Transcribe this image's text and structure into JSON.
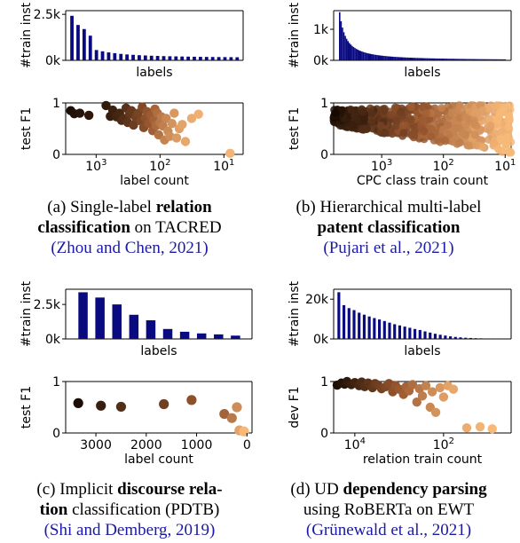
{
  "colors": {
    "bar": "#0a0a80",
    "dark": "#1c0e04",
    "light": "#f7b878",
    "axis": "#000000",
    "cite": "#1a1aa6"
  },
  "panels": [
    {
      "id": "a",
      "caption": {
        "pre": "(a) Single-label ",
        "bold1": "relation",
        "mid": " ",
        "bold2": "classification",
        "post": " on TACRED",
        "cite": "(Zhou and Chen, 2021)"
      },
      "chart_data": [
        {
          "type": "bar",
          "xlabel": "labels",
          "ylabel": "#train inst",
          "yticks": [
            "0k",
            "2.5k"
          ],
          "ylim": [
            0,
            2700
          ],
          "values": [
            2420,
            1920,
            1700,
            1340,
            560,
            490,
            430,
            390,
            350,
            320,
            300,
            280,
            265,
            250,
            240,
            230,
            222,
            215,
            208,
            202,
            196,
            190,
            186,
            182,
            178,
            175,
            172,
            168
          ]
        },
        {
          "type": "scatter",
          "xlabel": "label count",
          "ylabel": "test F1",
          "xscale": "log",
          "xreversed": true,
          "xlim": [
            3000,
            5
          ],
          "ylim": [
            0,
            1
          ],
          "yticks": [
            "0",
            "1"
          ],
          "xticks": [
            "10^3",
            "10^2",
            "10^1"
          ],
          "points": [
            [
              2500,
              0.85
            ],
            [
              2200,
              0.79
            ],
            [
              1800,
              0.8
            ],
            [
              1300,
              0.76
            ],
            [
              700,
              0.95
            ],
            [
              600,
              0.74
            ],
            [
              550,
              0.86
            ],
            [
              480,
              0.73
            ],
            [
              430,
              0.8
            ],
            [
              400,
              0.66
            ],
            [
              370,
              0.7
            ],
            [
              340,
              0.9
            ],
            [
              320,
              0.62
            ],
            [
              300,
              0.78
            ],
            [
              280,
              0.85
            ],
            [
              260,
              0.57
            ],
            [
              240,
              0.72
            ],
            [
              220,
              0.8
            ],
            [
              200,
              0.65
            ],
            [
              190,
              0.92
            ],
            [
              180,
              0.52
            ],
            [
              170,
              0.7
            ],
            [
              160,
              0.83
            ],
            [
              150,
              0.6
            ],
            [
              140,
              0.76
            ],
            [
              130,
              0.46
            ],
            [
              125,
              0.66
            ],
            [
              120,
              0.88
            ],
            [
              115,
              0.56
            ],
            [
              110,
              0.8
            ],
            [
              105,
              0.38
            ],
            [
              100,
              0.62
            ],
            [
              95,
              0.73
            ],
            [
              90,
              0.55
            ],
            [
              85,
              0.28
            ],
            [
              80,
              0.7
            ],
            [
              75,
              0.45
            ],
            [
              70,
              0.35
            ],
            [
              65,
              0.6
            ],
            [
              60,
              0.8
            ],
            [
              55,
              0.32
            ],
            [
              50,
              0.5
            ],
            [
              45,
              0.58
            ],
            [
              40,
              0.25
            ],
            [
              32,
              0.7
            ],
            [
              25,
              0.78
            ],
            [
              8,
              0.02
            ]
          ]
        }
      ]
    },
    {
      "id": "b",
      "caption": {
        "pre": "(b) Hierarchical multi-label ",
        "bold1": "patent classification",
        "cite": "(Pujari et al., 2021)"
      },
      "chart_data": [
        {
          "type": "bar",
          "xlabel": "labels",
          "ylabel": "#train inst",
          "yticks": [
            "0k",
            "1k"
          ],
          "ylim": [
            0,
            1600
          ],
          "shape": "long-tail",
          "values": [
            1550,
            1100,
            800,
            600,
            460,
            360,
            290,
            235,
            195,
            165,
            140,
            120,
            104,
            91,
            80,
            71,
            64,
            58,
            52,
            47,
            43,
            39,
            36,
            33,
            30,
            28,
            26,
            24,
            22,
            20
          ]
        },
        {
          "type": "scatter",
          "xlabel": "CPC class train count",
          "ylabel": "test F1",
          "xscale": "log",
          "xreversed": true,
          "xlim": [
            6000,
            8
          ],
          "ylim": [
            0,
            1
          ],
          "yticks": [
            "0",
            "1"
          ],
          "xticks": [
            "10^3",
            "10^2",
            "10^1"
          ],
          "dense": true
        }
      ]
    },
    {
      "id": "c",
      "caption": {
        "pre": "(c) Implicit ",
        "bold1": "discourse rela-",
        "bold2": "tion",
        "post": " classification (PDTB)",
        "cite": "(Shi and Demberg, 2019)"
      },
      "chart_data": [
        {
          "type": "bar",
          "xlabel": "labels",
          "ylabel": "#train inst",
          "yticks": [
            "0k",
            "2.5k"
          ],
          "ylim": [
            0,
            3600
          ],
          "values": [
            3380,
            3000,
            2500,
            1750,
            1350,
            720,
            520,
            400,
            330,
            240
          ]
        },
        {
          "type": "scatter",
          "xlabel": "label count",
          "ylabel": "test F1",
          "xreversed": true,
          "xlim": [
            3600,
            -100
          ],
          "ylim": [
            0,
            1
          ],
          "yticks": [
            "0",
            "1"
          ],
          "xticks": [
            "3000",
            "2000",
            "1000",
            "0"
          ],
          "points": [
            [
              3350,
              0.58
            ],
            [
              2900,
              0.53
            ],
            [
              2500,
              0.51
            ],
            [
              1650,
              0.56
            ],
            [
              1100,
              0.64
            ],
            [
              450,
              0.37
            ],
            [
              300,
              0.29
            ],
            [
              200,
              0.5
            ],
            [
              150,
              0.05
            ],
            [
              60,
              0.03
            ]
          ]
        }
      ]
    },
    {
      "id": "d",
      "caption": {
        "pre": "(d) UD ",
        "bold1": "dependency parsing",
        "line2": "using RoBERTa on EWT",
        "cite": "(Grünewald et al., 2021)"
      },
      "chart_data": [
        {
          "type": "bar",
          "xlabel": "labels",
          "ylabel": "#train inst",
          "yticks": [
            "0k",
            "20k"
          ],
          "ylim": [
            0,
            25000
          ],
          "values": [
            23500,
            17000,
            15500,
            14500,
            13200,
            12200,
            11300,
            10500,
            9800,
            9000,
            8200,
            7400,
            6800,
            6200,
            5600,
            5000,
            4500,
            3800,
            3200,
            2600,
            2100,
            1700,
            1300,
            1000,
            800,
            600,
            480,
            380,
            300,
            230,
            180,
            140,
            100,
            80
          ]
        },
        {
          "type": "scatter",
          "xlabel": "relation train count",
          "ylabel": "dev F1",
          "xscale": "log",
          "xreversed": true,
          "xlim": [
            30000,
            3
          ],
          "ylim": [
            0,
            1
          ],
          "yticks": [
            "0",
            "1"
          ],
          "xticks": [
            "10^4",
            "10^2"
          ],
          "points": [
            [
              25000,
              0.93
            ],
            [
              20000,
              0.97
            ],
            [
              17000,
              0.95
            ],
            [
              15000,
              1.0
            ],
            [
              12000,
              0.94
            ],
            [
              10000,
              0.98
            ],
            [
              8000,
              0.92
            ],
            [
              7000,
              0.99
            ],
            [
              6000,
              0.9
            ],
            [
              5000,
              0.97
            ],
            [
              4000,
              0.88
            ],
            [
              3500,
              0.96
            ],
            [
              3000,
              0.93
            ],
            [
              2500,
              0.86
            ],
            [
              2000,
              0.9
            ],
            [
              1700,
              0.96
            ],
            [
              1400,
              0.8
            ],
            [
              1200,
              0.92
            ],
            [
              1000,
              0.85
            ],
            [
              800,
              0.75
            ],
            [
              700,
              0.9
            ],
            [
              600,
              0.82
            ],
            [
              500,
              0.94
            ],
            [
              400,
              0.6
            ],
            [
              350,
              0.86
            ],
            [
              300,
              0.72
            ],
            [
              250,
              0.92
            ],
            [
              200,
              0.5
            ],
            [
              180,
              0.8
            ],
            [
              150,
              0.4
            ],
            [
              120,
              0.88
            ],
            [
              100,
              0.7
            ],
            [
              80,
              0.92
            ],
            [
              60,
              0.85
            ],
            [
              30,
              0.1
            ],
            [
              15,
              0.12
            ],
            [
              8,
              0.08
            ]
          ]
        }
      ]
    }
  ]
}
